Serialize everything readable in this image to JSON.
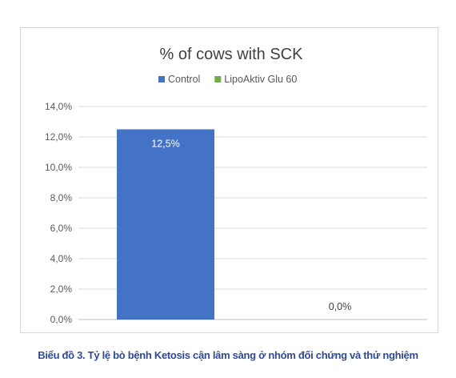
{
  "chart_data": {
    "type": "bar",
    "title": "% of cows with SCK",
    "categories": [
      "Control",
      "LipoAktiv Glu 60"
    ],
    "series": [
      {
        "name": "Control",
        "color": "#4472c4"
      },
      {
        "name": "LipoAktiv Glu 60",
        "color": "#70ad47"
      }
    ],
    "values": [
      12.5,
      0.0
    ],
    "data_labels": [
      "12,5%",
      "0,0%"
    ],
    "yticks": [
      "0,0%",
      "2,0%",
      "4,0%",
      "6,0%",
      "8,0%",
      "10,0%",
      "12,0%",
      "14,0%"
    ],
    "ylim": [
      0,
      14
    ],
    "xlabel": "",
    "ylabel": "",
    "grid": true,
    "legend_position": "top"
  },
  "caption": "Biểu đồ 3. Tỷ lệ bò bệnh Ketosis cận lâm sàng ở nhóm đối chứng và thử nghiệm"
}
